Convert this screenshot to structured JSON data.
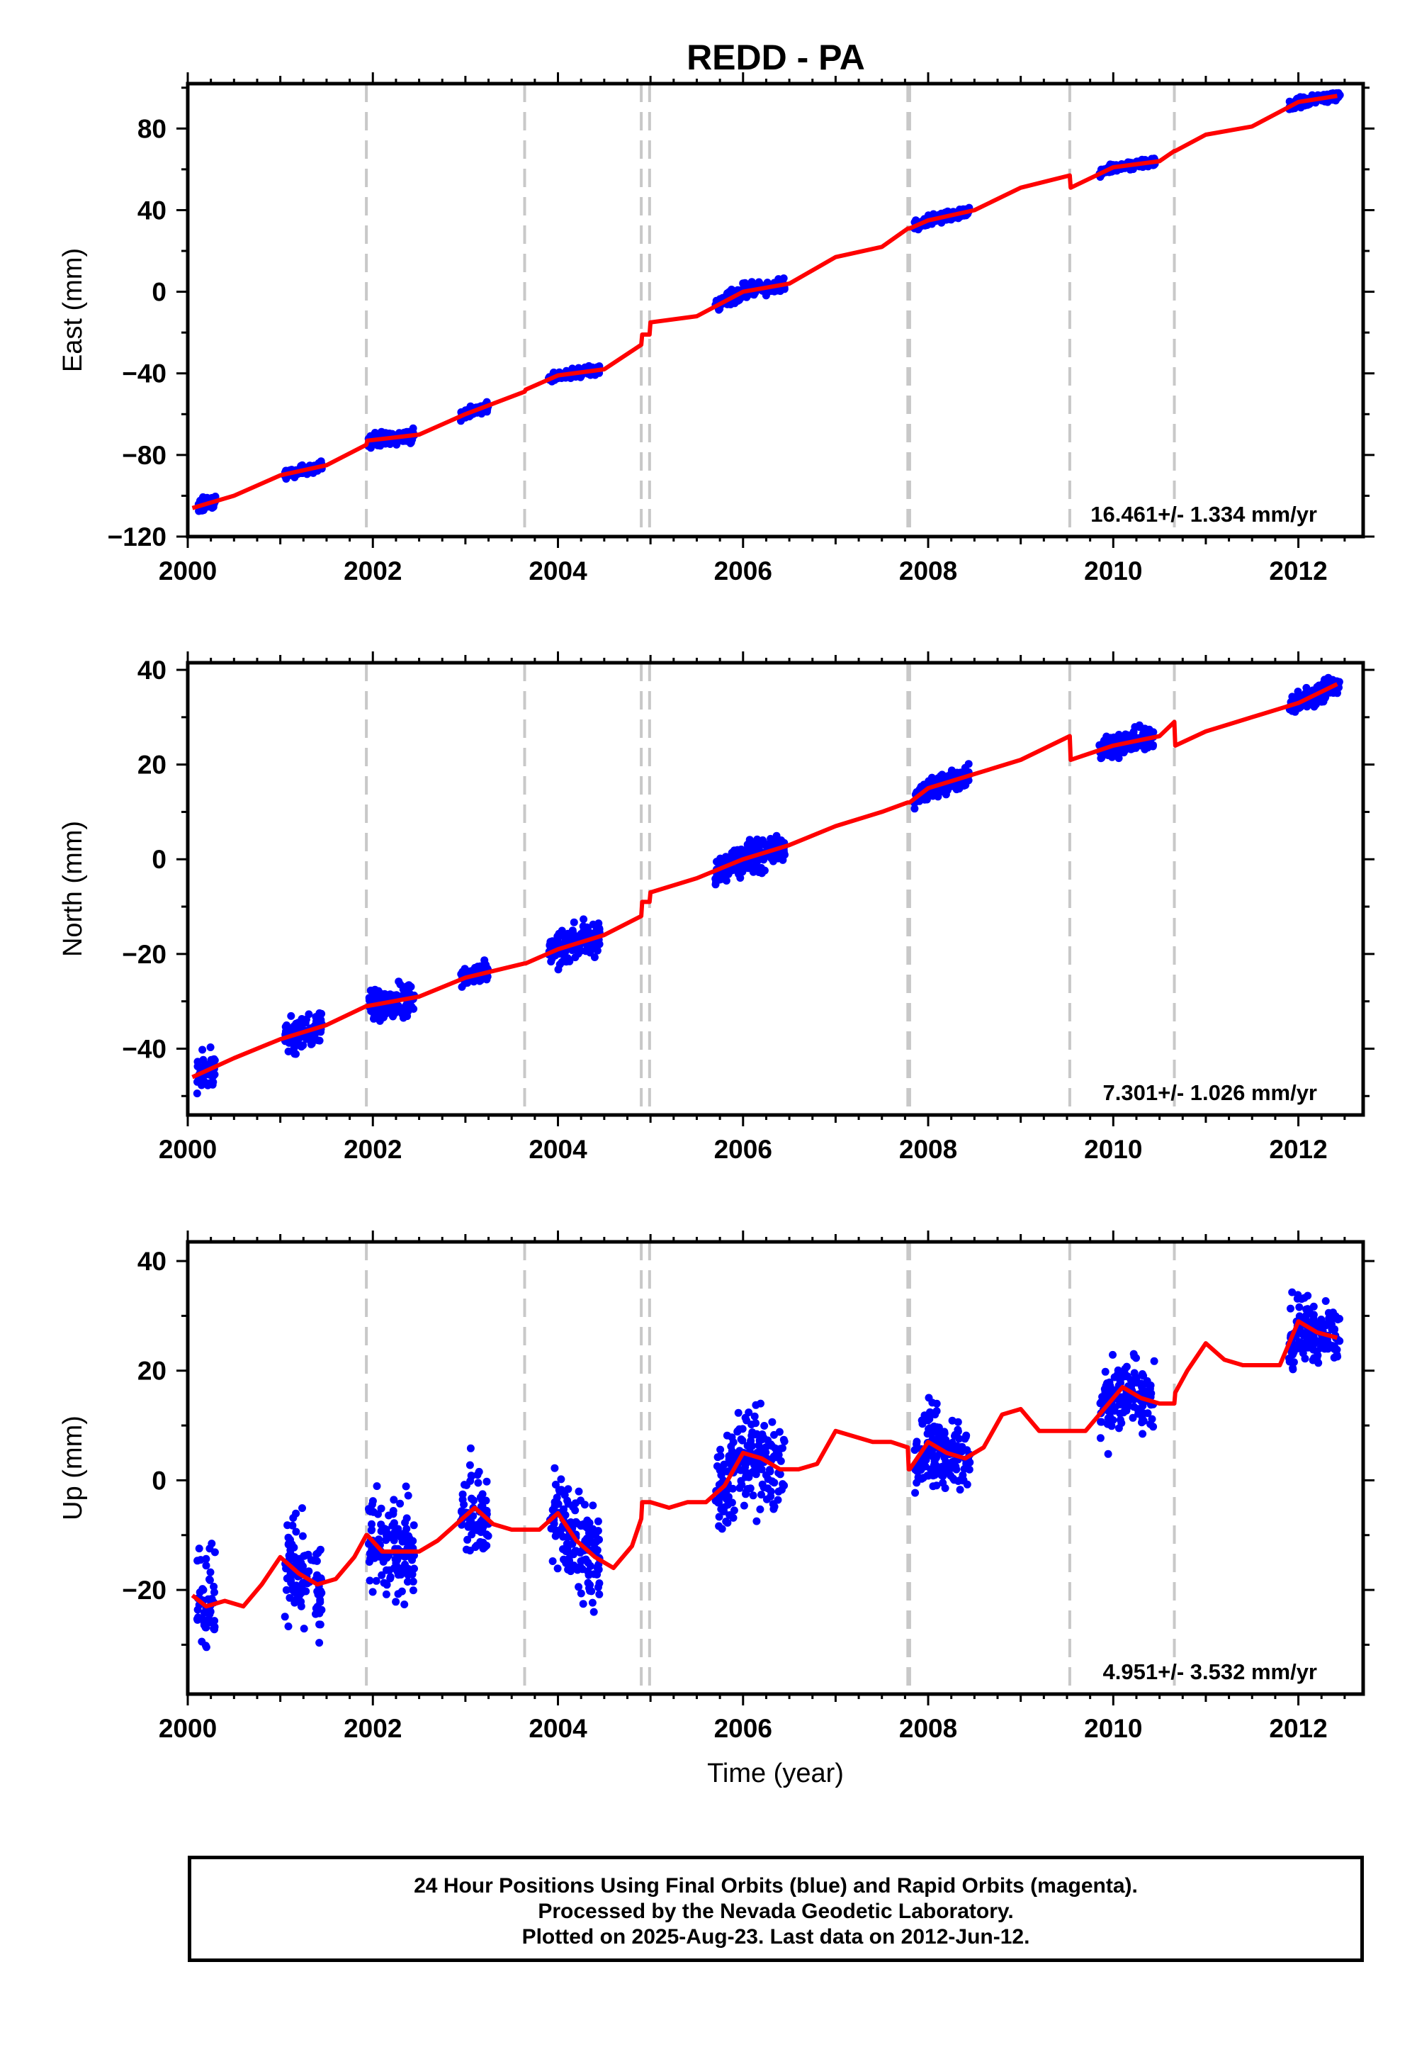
{
  "title": "REDD - PA",
  "footer": {
    "line1": "24 Hour Positions Using Final Orbits (blue) and Rapid Orbits (magenta).",
    "line2": "Processed by the Nevada Geodetic Laboratory.",
    "line3": "Plotted on 2025-Aug-23. Last data on 2012-Jun-12."
  },
  "colors": {
    "data_points": "#0000ff",
    "model_line": "#ff0000",
    "offset_lines": "#c8c8c8"
  },
  "chart_data": [
    {
      "type": "scatter",
      "title": "REDD - PA",
      "ylabel": "East (mm)",
      "xlabel": "",
      "xlim": [
        2000,
        2012.7
      ],
      "ylim": [
        -120,
        102
      ],
      "x_ticks": [
        "2000",
        "2002",
        "2004",
        "2006",
        "2008",
        "2010",
        "2012"
      ],
      "y_ticks": [
        "−120",
        "−80",
        "−40",
        "0",
        "40",
        "80"
      ],
      "y_tick_values": [
        -120,
        -80,
        -40,
        0,
        40,
        80
      ],
      "rate": "16.461+/- 1.334 mm/yr",
      "grid": false,
      "offset_epochs": [
        2001.93,
        2003.64,
        2004.9,
        2004.99,
        2007.78,
        2007.8,
        2009.53,
        2010.66
      ],
      "series": [
        {
          "kind": "points",
          "clusters": [
            {
              "x": [
                2000.1,
                2000.3
              ],
              "y": -108,
              "spread": 3
            },
            {
              "x": [
                2001.05,
                2001.45
              ],
              "y": -88,
              "spread": 2
            },
            {
              "x": [
                2001.95,
                2002.45
              ],
              "y": -72,
              "spread": 3
            },
            {
              "x": [
                2002.95,
                2003.25
              ],
              "y": -57,
              "spread": 2
            },
            {
              "x": [
                2003.9,
                2004.45
              ],
              "y": -40,
              "spread": 2
            },
            {
              "x": [
                2005.7,
                2006.45
              ],
              "y": 0,
              "spread": 3
            },
            {
              "x": [
                2007.85,
                2008.45
              ],
              "y": 35,
              "spread": 2
            },
            {
              "x": [
                2009.85,
                2010.45
              ],
              "y": 61,
              "spread": 2
            },
            {
              "x": [
                2011.9,
                2012.45
              ],
              "y": 94,
              "spread": 2
            }
          ]
        },
        {
          "kind": "model",
          "x": [
            2000.05,
            2000.5,
            2001.0,
            2001.5,
            2001.93,
            2001.94,
            2002.5,
            2003.0,
            2003.64,
            2003.65,
            2004.0,
            2004.5,
            2004.9,
            2004.91,
            2004.99,
            2005.0,
            2005.5,
            2006.0,
            2006.5,
            2007.0,
            2007.5,
            2007.78,
            2007.8,
            2008.0,
            2008.5,
            2009.0,
            2009.53,
            2009.54,
            2010.0,
            2010.5,
            2010.66,
            2010.67,
            2011.0,
            2011.5,
            2012.0,
            2012.42
          ],
          "y": [
            -106,
            -100,
            -90,
            -85,
            -75,
            -73,
            -70,
            -60,
            -49,
            -48,
            -41,
            -38,
            -26,
            -21,
            -21,
            -15,
            -12,
            0,
            4,
            17,
            22,
            31,
            31,
            35,
            40,
            51,
            57,
            51,
            61,
            64,
            69,
            69,
            77,
            81,
            93,
            96
          ]
        }
      ]
    },
    {
      "type": "scatter",
      "ylabel": "North (mm)",
      "xlabel": "",
      "xlim": [
        2000,
        2012.7
      ],
      "ylim": [
        -54,
        41.5
      ],
      "x_ticks": [
        "2000",
        "2002",
        "2004",
        "2006",
        "2008",
        "2010",
        "2012"
      ],
      "y_ticks": [
        "−40",
        "−20",
        "0",
        "20",
        "40"
      ],
      "y_tick_values": [
        -40,
        -20,
        0,
        20,
        40
      ],
      "rate": "7.301+/- 1.026 mm/yr",
      "grid": false,
      "offset_epochs": [
        2001.93,
        2003.64,
        2004.9,
        2004.99,
        2007.78,
        2007.8,
        2009.53,
        2010.66
      ],
      "series": [
        {
          "kind": "points",
          "clusters": [
            {
              "x": [
                2000.1,
                2000.3
              ],
              "y": -46,
              "spread": 3
            },
            {
              "x": [
                2001.05,
                2001.45
              ],
              "y": -38,
              "spread": 3
            },
            {
              "x": [
                2001.95,
                2002.45
              ],
              "y": -32,
              "spread": 3
            },
            {
              "x": [
                2002.95,
                2003.25
              ],
              "y": -25,
              "spread": 2
            },
            {
              "x": [
                2003.9,
                2004.45
              ],
              "y": -17,
              "spread": 3
            },
            {
              "x": [
                2005.7,
                2006.45
              ],
              "y": 0,
              "spread": 3
            },
            {
              "x": [
                2007.85,
                2008.45
              ],
              "y": 15,
              "spread": 2
            },
            {
              "x": [
                2009.85,
                2010.45
              ],
              "y": 24,
              "spread": 2
            },
            {
              "x": [
                2011.9,
                2012.45
              ],
              "y": 35,
              "spread": 2
            }
          ]
        },
        {
          "kind": "model",
          "x": [
            2000.05,
            2000.5,
            2001.0,
            2001.5,
            2001.93,
            2001.94,
            2002.5,
            2003.0,
            2003.64,
            2003.65,
            2004.0,
            2004.5,
            2004.9,
            2004.91,
            2004.99,
            2005.0,
            2005.5,
            2006.0,
            2006.5,
            2007.0,
            2007.5,
            2007.78,
            2007.8,
            2008.0,
            2008.5,
            2009.0,
            2009.53,
            2009.54,
            2010.0,
            2010.5,
            2010.66,
            2010.67,
            2011.0,
            2011.5,
            2012.0,
            2012.42
          ],
          "y": [
            -46,
            -42,
            -38,
            -35,
            -31,
            -31,
            -29,
            -25,
            -22,
            -22,
            -19,
            -16,
            -12,
            -9,
            -9,
            -7,
            -4,
            0,
            3,
            7,
            10,
            12,
            12,
            15,
            18,
            21,
            26,
            21,
            24,
            26,
            29,
            24,
            27,
            30,
            33,
            37
          ]
        }
      ]
    },
    {
      "type": "scatter",
      "ylabel": "Up (mm)",
      "xlabel": "Time (year)",
      "xlim": [
        2000,
        2012.7
      ],
      "ylim": [
        -39,
        43.5
      ],
      "x_ticks": [
        "2000",
        "2002",
        "2004",
        "2006",
        "2008",
        "2010",
        "2012"
      ],
      "y_ticks": [
        "−20",
        "0",
        "20",
        "40"
      ],
      "y_tick_values": [
        -20,
        0,
        20,
        40
      ],
      "rate": "4.951+/- 3.532 mm/yr",
      "grid": false,
      "offset_epochs": [
        2001.93,
        2003.64,
        2004.9,
        2004.99,
        2007.78,
        2007.8,
        2009.53,
        2010.66
      ],
      "series": [
        {
          "kind": "points",
          "clusters": [
            {
              "x": [
                2000.1,
                2000.3
              ],
              "y": -24,
              "spread": 9
            },
            {
              "x": [
                2001.05,
                2001.45
              ],
              "y": -17,
              "spread": 9
            },
            {
              "x": [
                2001.95,
                2002.45
              ],
              "y": -12,
              "spread": 8
            },
            {
              "x": [
                2002.95,
                2003.25
              ],
              "y": -6,
              "spread": 7
            },
            {
              "x": [
                2003.9,
                2004.45
              ],
              "y": -9,
              "spread": 8
            },
            {
              "x": [
                2005.7,
                2006.45
              ],
              "y": 0,
              "spread": 8
            },
            {
              "x": [
                2007.85,
                2008.45
              ],
              "y": 5,
              "spread": 6
            },
            {
              "x": [
                2009.85,
                2010.45
              ],
              "y": 16,
              "spread": 6
            },
            {
              "x": [
                2011.9,
                2012.45
              ],
              "y": 27,
              "spread": 5
            }
          ]
        },
        {
          "kind": "model",
          "x": [
            2000.05,
            2000.2,
            2000.4,
            2000.6,
            2000.8,
            2001.0,
            2001.2,
            2001.4,
            2001.6,
            2001.8,
            2001.93,
            2001.94,
            2002.1,
            2002.3,
            2002.5,
            2002.7,
            2002.9,
            2003.1,
            2003.3,
            2003.5,
            2003.64,
            2003.65,
            2003.8,
            2004.0,
            2004.2,
            2004.4,
            2004.6,
            2004.8,
            2004.9,
            2004.91,
            2004.99,
            2005.0,
            2005.2,
            2005.4,
            2005.6,
            2005.8,
            2006.0,
            2006.2,
            2006.4,
            2006.6,
            2006.8,
            2007.0,
            2007.2,
            2007.4,
            2007.6,
            2007.78,
            2007.79,
            2007.8,
            2008.0,
            2008.2,
            2008.4,
            2008.6,
            2008.8,
            2009.0,
            2009.2,
            2009.4,
            2009.53,
            2009.54,
            2009.7,
            2009.9,
            2010.1,
            2010.3,
            2010.5,
            2010.66,
            2010.67,
            2010.8,
            2011.0,
            2011.2,
            2011.4,
            2011.6,
            2011.8,
            2012.0,
            2012.2,
            2012.42
          ],
          "y": [
            -21,
            -23,
            -22,
            -23,
            -19,
            -14,
            -17,
            -19,
            -18,
            -14,
            -10,
            -10,
            -13,
            -13,
            -13,
            -11,
            -8,
            -5,
            -8,
            -9,
            -9,
            -9,
            -9,
            -6,
            -11,
            -14,
            -16,
            -12,
            -7,
            -4,
            -4,
            -4,
            -5,
            -4,
            -4,
            -1,
            5,
            4,
            2,
            2,
            3,
            9,
            8,
            7,
            7,
            6,
            2,
            2,
            7,
            5,
            4,
            6,
            12,
            13,
            9,
            9,
            9,
            9,
            9,
            13,
            17,
            15,
            14,
            14,
            16,
            20,
            25,
            22,
            21,
            21,
            21,
            29,
            27,
            26
          ]
        }
      ]
    }
  ]
}
